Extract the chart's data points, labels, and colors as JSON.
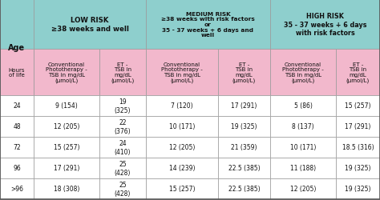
{
  "header_row2": [
    "Hours\nof life",
    "Conventional\nPhototherapy -\nTSB in mg/dL\n(μmol/L)",
    "ET -\nTSB in\nmg/dL\n(μmol/L)",
    "Conventional\nPhototherapy -\nTSB in mg/dL\n(μmol/L)",
    "ET -\nTSB in\nmg/dL\n(μmol/L)",
    "Conventional\nPhototherapy -\nTSB in mg/dL\n(μmol/L)",
    "ET -\nTSB in\nmg/dL\n(μmol/L)"
  ],
  "data_rows": [
    [
      "24",
      "9 (154)",
      "19\n(325)",
      "7 (120)",
      "17 (291)",
      "5 (86)",
      "15 (257)"
    ],
    [
      "48",
      "12 (205)",
      "22\n(376)",
      "10 (171)",
      "19 (325)",
      "8 (137)",
      "17 (291)"
    ],
    [
      "72",
      "15 (257)",
      "24\n(410)",
      "12 (205)",
      "21 (359)",
      "10 (171)",
      "18.5 (316)"
    ],
    [
      "96",
      "17 (291)",
      "25\n(428)",
      "14 (239)",
      "22.5 (385)",
      "11 (188)",
      "19 (325)"
    ],
    [
      ">96",
      "18 (308)",
      "25\n(428)",
      "15 (257)",
      "22.5 (385)",
      "12 (205)",
      "19 (325)"
    ]
  ],
  "low_risk_header": "LOW RISK\n≥38 weeks and well",
  "med_risk_header": "MEDIUM RISK\n≥38 weeks with risk factors\nor\n35 - 37 weeks + 6 days and\nwell",
  "high_risk_header": "HIGH RISK\n35 - 37 weeks + 6 days\nwith risk factors",
  "header1_bg": "#8ecfcd",
  "header2_bg": "#f2b8cc",
  "data_bg": "#ffffff",
  "border_color": "#999999",
  "text_color": "#111111",
  "fig_width": 4.74,
  "fig_height": 2.51,
  "dpi": 100
}
